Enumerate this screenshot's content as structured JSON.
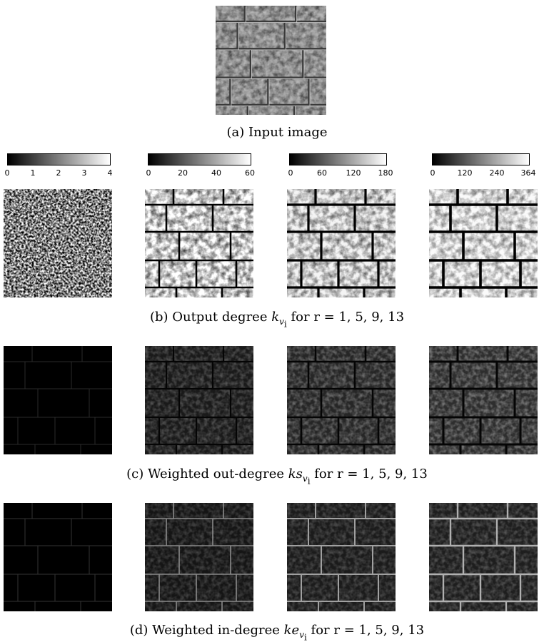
{
  "captions": {
    "a": "(a) Input image",
    "b_prefix": "(b) Output degree ",
    "b_sym": "k",
    "b_sub": "v",
    "b_subsub": "i",
    "b_suffix": " for r = 1, 5, 9, 13",
    "c_prefix": "(c) Weighted out-degree ",
    "c_sym": "ks",
    "c_sub": "v",
    "c_subsub": "i",
    "c_suffix": " for r = 1, 5, 9, 13",
    "d_prefix": "(d) Weighted in-degree ",
    "d_sym": "ke",
    "d_sub": "v",
    "d_subsub": "i",
    "d_suffix": " for r = 1, 5, 9, 13"
  },
  "colorbars": [
    {
      "ticks": [
        "0",
        "1",
        "2",
        "3",
        "4"
      ]
    },
    {
      "ticks": [
        "0",
        "20",
        "40",
        "60"
      ]
    },
    {
      "ticks": [
        "0",
        "60",
        "120",
        "180"
      ]
    },
    {
      "ticks": [
        "0",
        "120",
        "240",
        "364"
      ]
    }
  ]
}
